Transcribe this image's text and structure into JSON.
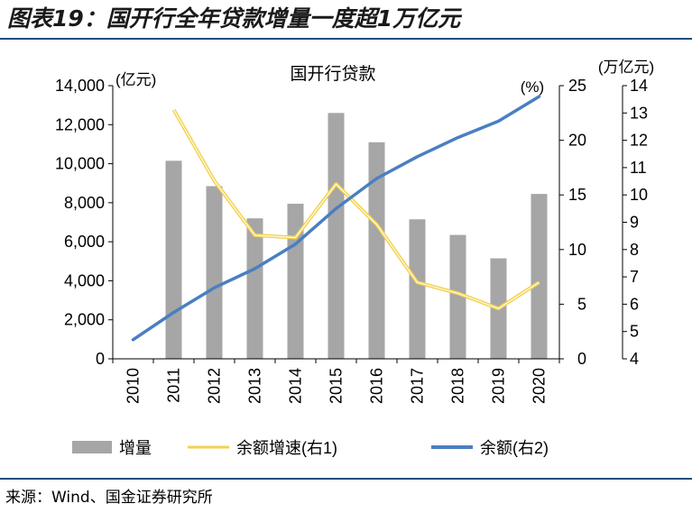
{
  "figure": {
    "title": "图表19：国开行全年贷款增量一度超1万亿元",
    "source": "来源：Wind、国金证券研究所"
  },
  "colors": {
    "bar": "#a6a6a6",
    "growth_line": "#f2d24f",
    "balance_line": "#4a7fc1",
    "rule": "#1f4e79"
  },
  "chart_data": {
    "type": "bar",
    "title": "国开行贷款",
    "categories": [
      "2010",
      "2011",
      "2012",
      "2013",
      "2014",
      "2015",
      "2016",
      "2017",
      "2018",
      "2019",
      "2020"
    ],
    "axes": {
      "left": {
        "label": "(亿元)",
        "min": 0,
        "max": 14000,
        "step": 2000,
        "ticks": [
          "0",
          "2,000",
          "4,000",
          "6,000",
          "8,000",
          "10,000",
          "12,000",
          "14,000"
        ]
      },
      "right1": {
        "label": "(%)",
        "min": 0,
        "max": 25,
        "step": 5,
        "ticks": [
          "0",
          "5",
          "10",
          "15",
          "20",
          "25"
        ]
      },
      "right2": {
        "label": "(万亿元)",
        "min": 4,
        "max": 14,
        "step": 1,
        "ticks": [
          "4",
          "5",
          "6",
          "7",
          "8",
          "9",
          "10",
          "11",
          "12",
          "13",
          "14"
        ]
      }
    },
    "series": [
      {
        "name": "增量",
        "type": "bar",
        "axis": "left",
        "values": [
          null,
          10150,
          8850,
          7200,
          7950,
          12600,
          11100,
          7150,
          6350,
          5150,
          8450
        ]
      },
      {
        "name": "余额增速(右1)",
        "type": "line",
        "axis": "right1",
        "values": [
          null,
          22.8,
          16.3,
          11.3,
          11.1,
          16.0,
          12.3,
          7.0,
          6.0,
          4.6,
          7.0
        ]
      },
      {
        "name": "余额(右2)",
        "type": "line",
        "axis": "right2",
        "values": [
          4.7,
          5.7,
          6.6,
          7.3,
          8.2,
          9.5,
          10.6,
          11.4,
          12.1,
          12.7,
          13.6
        ]
      }
    ],
    "legend": [
      "增量",
      "余额增速(右1)",
      "余额(右2)"
    ],
    "legend_position": "bottom"
  }
}
